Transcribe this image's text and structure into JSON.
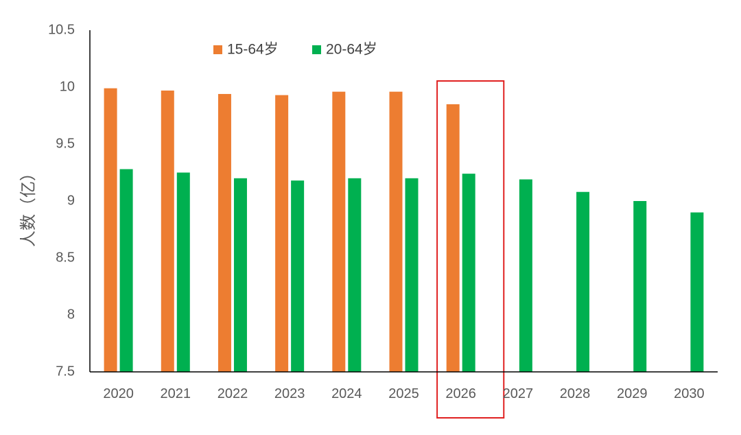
{
  "chart_data": {
    "type": "bar",
    "title": "",
    "xlabel": "",
    "ylabel": "人数（亿）",
    "ylim": [
      7.5,
      10.5
    ],
    "yticks": [
      "7.5",
      "8",
      "8.5",
      "9",
      "9.5",
      "10",
      "10.5"
    ],
    "categories": [
      "2020",
      "2021",
      "2022",
      "2023",
      "2024",
      "2025",
      "2026",
      "2027",
      "2028",
      "2029",
      "2030"
    ],
    "series": [
      {
        "name": "15-64岁",
        "color": "#ED7D31",
        "values": [
          9.99,
          9.97,
          9.94,
          9.93,
          9.96,
          9.96,
          9.85,
          null,
          null,
          null,
          null
        ]
      },
      {
        "name": "20-64岁",
        "color": "#00B050",
        "values": [
          9.28,
          9.25,
          9.2,
          9.18,
          9.2,
          9.2,
          9.24,
          9.19,
          9.08,
          9.0,
          8.9
        ]
      }
    ],
    "legend_position": "top",
    "grid": false,
    "highlight": {
      "category": "2026",
      "color": "#E02020"
    }
  }
}
